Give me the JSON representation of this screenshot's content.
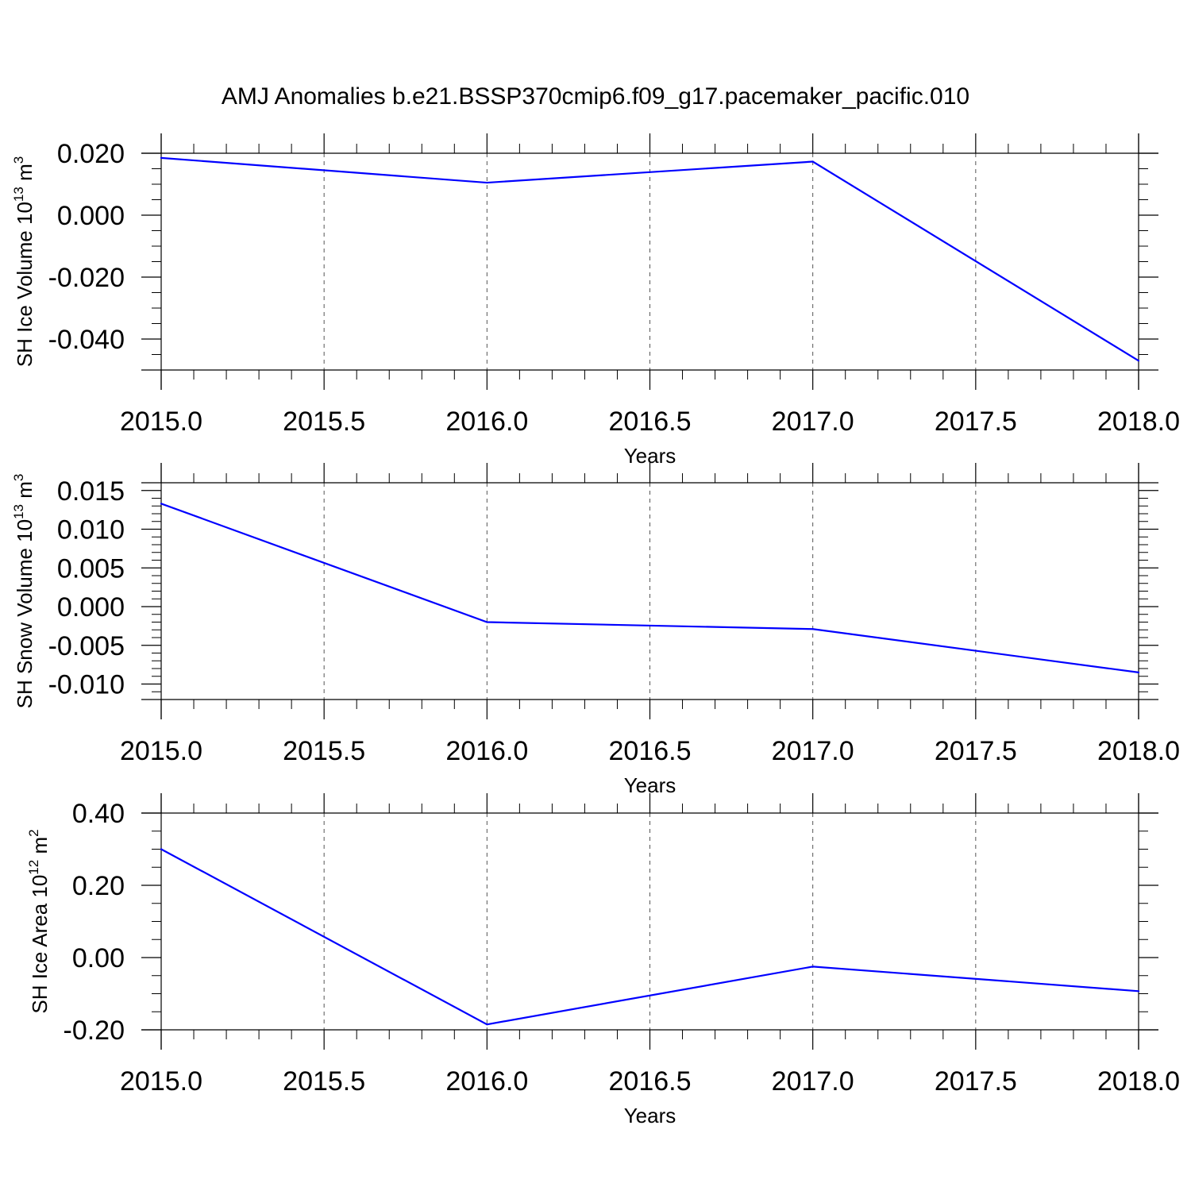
{
  "title": "AMJ Anomalies b.e21.BSSP370cmip6.f09_g17.pacemaker_pacific.010",
  "colors": {
    "line": "#0000ff",
    "axis": "#000000",
    "grid": "#555555"
  },
  "chart_data": [
    {
      "type": "line",
      "ylabel": {
        "main": "SH Ice Volume 10",
        "exp": "13",
        "unit": " m",
        "unit_exp": "3"
      },
      "xlabel": "Years",
      "xlim": [
        2015.0,
        2018.0
      ],
      "ylim": [
        -0.05,
        0.02
      ],
      "x_ticks": [
        "2015.0",
        "2015.5",
        "2016.0",
        "2016.5",
        "2017.0",
        "2017.5",
        "2018.0"
      ],
      "y_ticks": [
        "0.020",
        "0.000",
        "-0.020",
        "-0.040"
      ],
      "x": [
        2015,
        2016,
        2017,
        2018
      ],
      "y": [
        0.0185,
        0.0105,
        0.0173,
        -0.047
      ],
      "grid": "vertical dashed at major x ticks"
    },
    {
      "type": "line",
      "ylabel": {
        "main": "SH Snow Volume 10",
        "exp": "13",
        "unit": " m",
        "unit_exp": "3"
      },
      "xlabel": "Years",
      "xlim": [
        2015.0,
        2018.0
      ],
      "ylim": [
        -0.012,
        0.016
      ],
      "x_ticks": [
        "2015.0",
        "2015.5",
        "2016.0",
        "2016.5",
        "2017.0",
        "2017.5",
        "2018.0"
      ],
      "y_ticks": [
        "0.015",
        "0.010",
        "0.005",
        "0.000",
        "-0.005",
        "-0.010"
      ],
      "x": [
        2015,
        2016,
        2017,
        2018
      ],
      "y": [
        0.0133,
        -0.002,
        -0.0029,
        -0.0085
      ],
      "grid": "vertical dashed at major x ticks"
    },
    {
      "type": "line",
      "ylabel": {
        "main": "SH Ice Area 10",
        "exp": "12",
        "unit": " m",
        "unit_exp": "2"
      },
      "xlabel": "Years",
      "xlim": [
        2015.0,
        2018.0
      ],
      "ylim": [
        -0.2,
        0.4
      ],
      "x_ticks": [
        "2015.0",
        "2015.5",
        "2016.0",
        "2016.5",
        "2017.0",
        "2017.5",
        "2018.0"
      ],
      "y_ticks": [
        "0.40",
        "0.20",
        "0.00",
        "-0.20"
      ],
      "x": [
        2015,
        2016,
        2017,
        2018
      ],
      "y": [
        0.3,
        -0.185,
        -0.025,
        -0.093
      ],
      "grid": "vertical dashed at major x ticks"
    }
  ]
}
